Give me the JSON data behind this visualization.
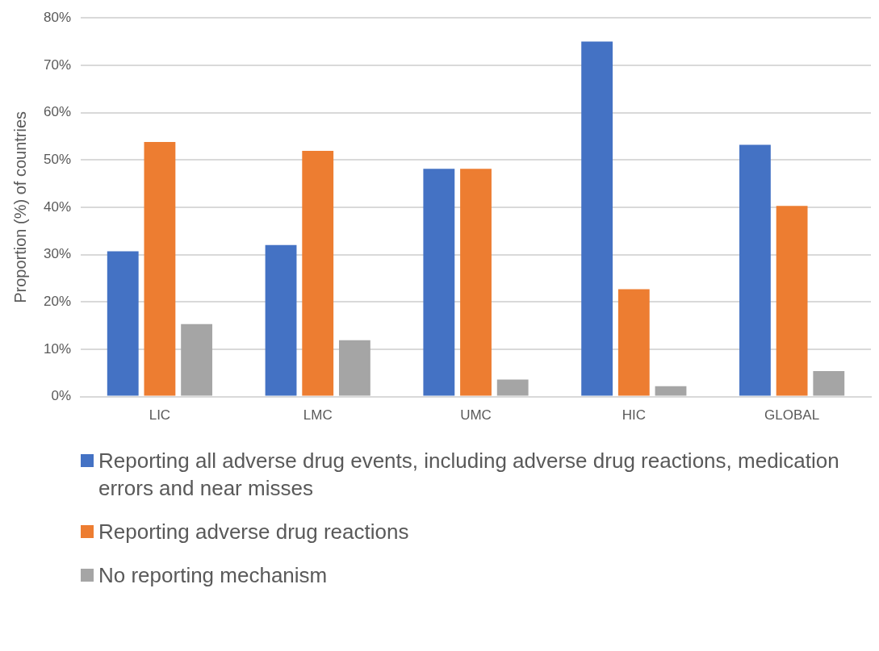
{
  "chart_data": {
    "type": "bar",
    "ylabel": "Proportion (%) of countries",
    "categories": [
      "LIC",
      "LMC",
      "UMC",
      "HIC",
      "GLOBAL"
    ],
    "series": [
      {
        "name": "Reporting all adverse drug events, including adverse drug reactions, medication errors and near misses",
        "color": "#4472c4",
        "values": [
          30.7,
          32,
          48.1,
          75,
          53.2
        ]
      },
      {
        "name": "Reporting adverse drug reactions",
        "color": "#ed7d31",
        "values": [
          53.8,
          51.9,
          48.1,
          22.7,
          40.3
        ]
      },
      {
        "name": "No reporting mechanism",
        "color": "#a5a5a5",
        "values": [
          15.3,
          11.9,
          3.6,
          2.2,
          5.4
        ]
      }
    ],
    "ylim": [
      0,
      80
    ],
    "yticks": [
      {
        "value": 0,
        "label": "0%"
      },
      {
        "value": 10,
        "label": "10%"
      },
      {
        "value": 20,
        "label": "20%"
      },
      {
        "value": 30,
        "label": "30%"
      },
      {
        "value": 40,
        "label": "40%"
      },
      {
        "value": 50,
        "label": "50%"
      },
      {
        "value": 60,
        "label": "60%"
      },
      {
        "value": 70,
        "label": "70%"
      },
      {
        "value": 80,
        "label": "80%"
      }
    ],
    "grid": "y",
    "legend": "bottom"
  }
}
